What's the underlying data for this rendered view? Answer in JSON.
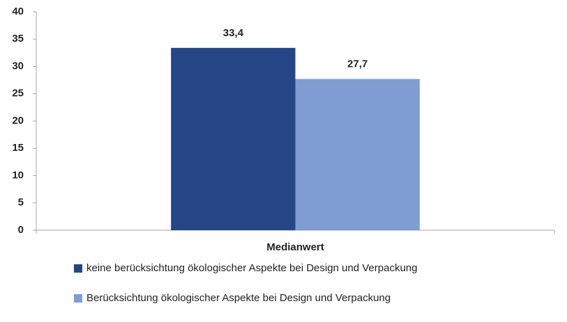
{
  "chart_data": {
    "type": "bar",
    "categories": [
      "Medianwert"
    ],
    "series": [
      {
        "name": "keine berücksichtung ökologischer Aspekte bei Design und Verpackung",
        "color": "#264584",
        "values": [
          33.4
        ],
        "value_labels": [
          "33,4"
        ]
      },
      {
        "name": "Berücksichtung ökologischer Aspekte bei Design und Verpackung",
        "color": "#7f9dd3",
        "values": [
          27.7
        ],
        "value_labels": [
          "27,7"
        ]
      }
    ],
    "ylim": [
      0,
      40
    ],
    "yticks": [
      0,
      5,
      10,
      15,
      20,
      25,
      30,
      35,
      40
    ],
    "grid": false,
    "legend": "bottom"
  }
}
